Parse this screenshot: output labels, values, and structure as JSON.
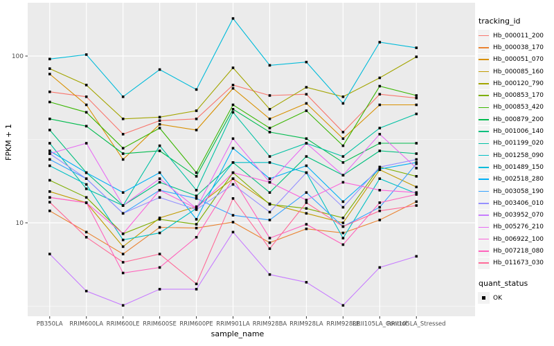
{
  "figure": {
    "y_axis_title": "FPKM + 1",
    "x_axis_title": "sample_name",
    "legend_title": "tracking_id",
    "quant_legend_title": "quant_status",
    "quant_items": [
      {
        "label": "OK"
      }
    ],
    "panel_background": "#EBEBEB",
    "grid_color": "#FFFFFF",
    "tick_text_color": "#4D4D4D",
    "point_color": "#000000"
  },
  "chart_data": {
    "type": "line",
    "title": "",
    "xlabel": "sample_name",
    "ylabel": "FPKM + 1",
    "y_scale": "log10",
    "y_ticks": [
      100,
      10
    ],
    "y_minor_ticks": [
      31.62,
      3.162
    ],
    "y_domain": [
      2.75,
      209
    ],
    "legend_position": "right",
    "grid": true,
    "point_shape": "filled-square",
    "categories": [
      "PB350LA",
      "RRIM600LA",
      "RRIM600LE",
      "RRIM600SE",
      "RRIM600PE",
      "RRIM901LA",
      "RRIM928BA",
      "RRIM928LA",
      "RRIM928LE",
      "RRII105LA_Control",
      "RRII105LA_Stressed"
    ],
    "series": [
      {
        "name": "Hb_000011_200",
        "color": "#F8766D",
        "quant_status": "OK",
        "values": [
          61,
          57,
          34,
          41,
          42,
          67,
          58,
          59,
          35,
          59,
          56
        ]
      },
      {
        "name": "Hb_000038_170",
        "color": "#EA8331",
        "quant_status": "OK",
        "values": [
          11.8,
          8.8,
          6.5,
          9.4,
          9.3,
          10.1,
          7.6,
          9.2,
          8.7,
          10.4,
          13.4
        ]
      },
      {
        "name": "Hb_000051_070",
        "color": "#D89000",
        "quant_status": "OK",
        "values": [
          78,
          51,
          24,
          39,
          36,
          64,
          42,
          52,
          32,
          51,
          51
        ]
      },
      {
        "name": "Hb_000085_160",
        "color": "#C09B00",
        "quant_status": "OK",
        "values": [
          15.4,
          13.2,
          7.2,
          10.7,
          12.5,
          18.4,
          13,
          11.4,
          10,
          20.8,
          16.4
        ]
      },
      {
        "name": "Hb_000120_790",
        "color": "#A3A500",
        "quant_status": "OK",
        "values": [
          84,
          67,
          42,
          43,
          47,
          85,
          48,
          65,
          57,
          74,
          99
        ]
      },
      {
        "name": "Hb_000853_170",
        "color": "#7CAE00",
        "quant_status": "OK",
        "values": [
          18,
          14.2,
          8.6,
          10.5,
          9.8,
          20,
          12.9,
          12.2,
          10.7,
          21.6,
          19
        ]
      },
      {
        "name": "Hb_000853_420",
        "color": "#39B600",
        "quant_status": "OK",
        "values": [
          53,
          46,
          28,
          37,
          20,
          51,
          37,
          47,
          29,
          66,
          58
        ]
      },
      {
        "name": "Hb_000879_200",
        "color": "#00BB4E",
        "quant_status": "OK",
        "values": [
          42,
          38,
          26,
          27,
          19,
          48,
          35,
          32,
          23,
          30,
          30
        ]
      },
      {
        "name": "Hb_001006_140",
        "color": "#00BF7D",
        "quant_status": "OK",
        "values": [
          36,
          20,
          12.7,
          17.5,
          14.5,
          23,
          15.2,
          25,
          19.3,
          27,
          26
        ]
      },
      {
        "name": "Hb_001199_020",
        "color": "#00C1A3",
        "quant_status": "OK",
        "values": [
          30,
          16,
          12.7,
          29,
          15.7,
          46,
          25,
          30,
          25,
          37,
          45
        ]
      },
      {
        "name": "Hb_001258_090",
        "color": "#00BFC4",
        "quant_status": "OK",
        "values": [
          22,
          17,
          7.9,
          8.7,
          12.2,
          23,
          23,
          20,
          8.1,
          18.4,
          15
        ]
      },
      {
        "name": "Hb_001489_150",
        "color": "#00BBDA",
        "quant_status": "OK",
        "values": [
          96,
          102,
          57,
          83,
          63,
          168,
          88,
          92,
          52,
          121,
          112
        ]
      },
      {
        "name": "Hb_002518_280",
        "color": "#00B0F6",
        "quant_status": "OK",
        "values": [
          27,
          20,
          15.2,
          20,
          10.5,
          28,
          18.4,
          22,
          13.4,
          21,
          23
        ]
      },
      {
        "name": "Hb_003058_190",
        "color": "#35A2FF",
        "quant_status": "OK",
        "values": [
          24,
          18.4,
          11.4,
          15.7,
          14,
          11.1,
          10.4,
          15.2,
          9.5,
          12.4,
          22.6
        ]
      },
      {
        "name": "Hb_003406_010",
        "color": "#9590FF",
        "quant_status": "OK",
        "values": [
          26,
          18.4,
          11.4,
          14.2,
          12,
          17,
          11.6,
          20,
          12.4,
          21.6,
          24
        ]
      },
      {
        "name": "Hb_003952_070",
        "color": "#C77CFF",
        "quant_status": "OK",
        "values": [
          6.5,
          3.9,
          3.2,
          4,
          4,
          8.8,
          4.9,
          4.4,
          3.2,
          5.4,
          6.3
        ]
      },
      {
        "name": "Hb_005276_210",
        "color": "#E76BF3",
        "quant_status": "OK",
        "values": [
          26,
          30,
          12.7,
          18.4,
          12.2,
          32,
          17.5,
          30,
          19.3,
          34,
          21.3
        ]
      },
      {
        "name": "Hb_006922_100",
        "color": "#FA62DB",
        "quant_status": "OK",
        "values": [
          14.2,
          13.2,
          8.6,
          15.7,
          12.2,
          20,
          17.5,
          13.7,
          17.5,
          15.7,
          15.2
        ]
      },
      {
        "name": "Hb_007218_080",
        "color": "#FF62BC",
        "quant_status": "OK",
        "values": [
          14.2,
          13.2,
          5,
          5.4,
          8.2,
          18.4,
          8.1,
          9.8,
          7.4,
          13.2,
          14.8
        ]
      },
      {
        "name": "Hb_011673_030",
        "color": "#FF6A98",
        "quant_status": "OK",
        "values": [
          13.3,
          8.2,
          5.8,
          6.5,
          4.3,
          14,
          7,
          13.2,
          9.5,
          11.8,
          12.7
        ]
      }
    ]
  }
}
